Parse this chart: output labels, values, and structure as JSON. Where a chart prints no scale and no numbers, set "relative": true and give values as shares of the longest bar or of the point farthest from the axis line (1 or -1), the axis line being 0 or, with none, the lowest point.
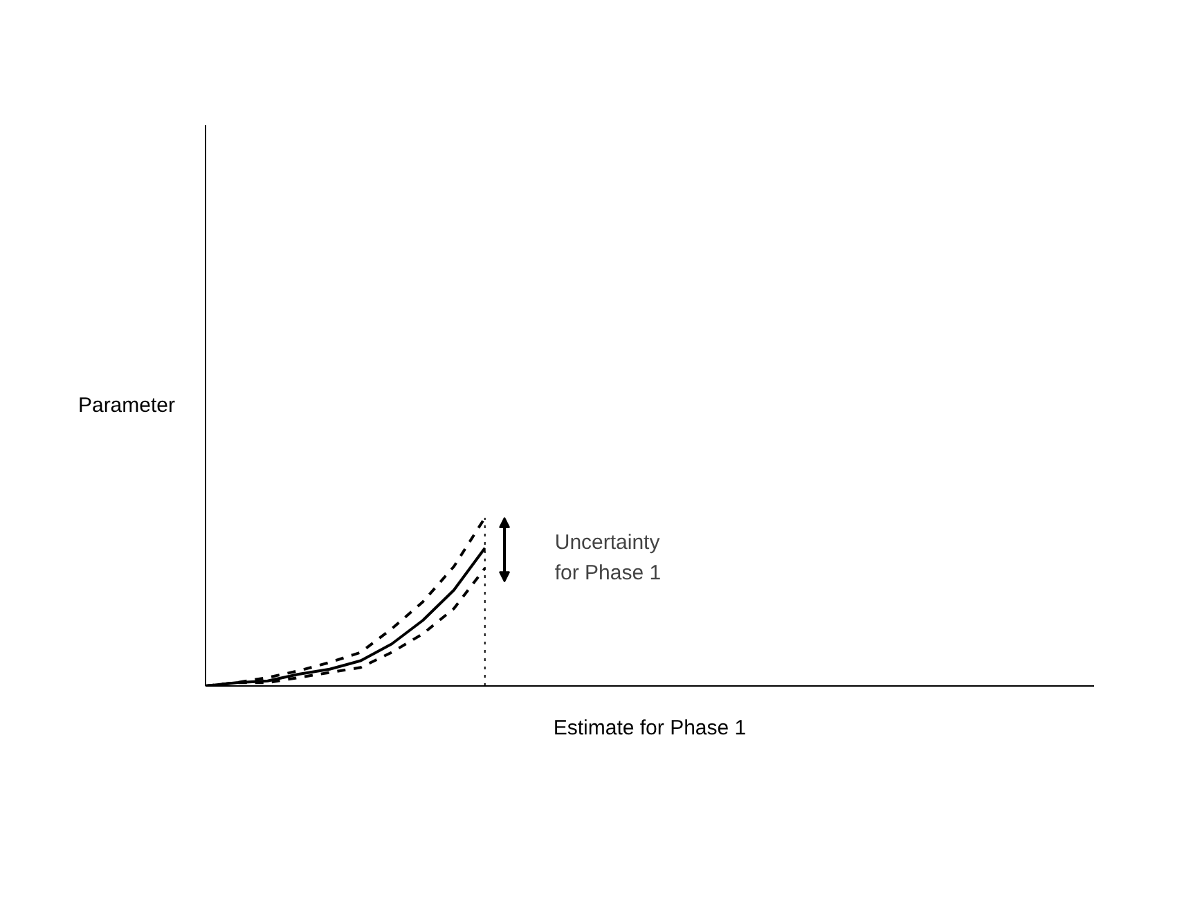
{
  "chart_data": {
    "type": "line",
    "relative": true,
    "xlabel": "Estimate for Phase 1",
    "ylabel": "Parameter",
    "categories": [
      null,
      null,
      null,
      null,
      null,
      null,
      null,
      null,
      null,
      null
    ],
    "series": [
      {
        "color": "#000000",
        "line_style": "dashed",
        "values": [
          0,
          0.02,
          0.05,
          0.09,
          0.14,
          0.2,
          0.34,
          0.5,
          0.71,
          1
        ]
      },
      {
        "color": "#000000",
        "line_style": "solid",
        "values": [
          0,
          0.02,
          0.03,
          0.07,
          0.1,
          0.15,
          0.25,
          0.39,
          0.57,
          0.82
        ]
      },
      {
        "color": "#000000",
        "line_style": "dashed",
        "values": [
          0,
          0.02,
          0.02,
          0.05,
          0.08,
          0.11,
          0.2,
          0.31,
          0.46,
          0.7
        ]
      }
    ],
    "ref_lines": [
      {
        "axis": "x",
        "label": null,
        "line_style": "dotted",
        "color": "#000000"
      }
    ],
    "annotations": [
      "Uncertainty\nfor Phase 1"
    ]
  }
}
